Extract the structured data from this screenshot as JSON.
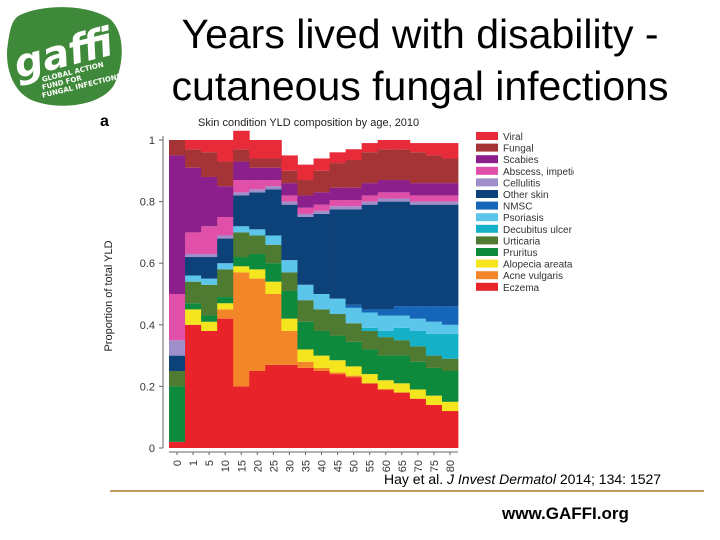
{
  "slide": {
    "title_line1": "Years lived with disability -",
    "title_line2": "cutaneous fungal infections",
    "citation_authors": "Hay et al.",
    "citation_journal": "J Invest Dermatol",
    "citation_details": "2014; 134: 1527",
    "website": "www.GAFFI.org"
  },
  "logo": {
    "wordmark": "gaffi",
    "tagline_1": "GLOBAL ACTION",
    "tagline_2": "FUND FOR",
    "tagline_3": "FUNGAL INFECTIONS",
    "bg_color": "#3f8a3a",
    "text_color": "#ffffff"
  },
  "chart_data": {
    "type": "stacked-bar",
    "panel_label": "a",
    "title": "Skin condition YLD composition by age, 2010",
    "ylabel": "Proportion of total YLD",
    "xlabel": "",
    "ylim": [
      0,
      1
    ],
    "yticks": [
      0,
      0.2,
      0.4,
      0.6,
      0.8,
      1
    ],
    "ytick_labels": [
      "0",
      "0.2",
      "0.4",
      "0.6",
      "0.8",
      "1"
    ],
    "categories": [
      "0",
      "1",
      "5",
      "10",
      "15",
      "20",
      "25",
      "30",
      "35",
      "40",
      "45",
      "50",
      "55",
      "60",
      "65",
      "70",
      "75",
      "80"
    ],
    "legend_position": "right",
    "series": [
      {
        "name": "Eczema",
        "color": "#e8232a",
        "values": [
          0.02,
          0.4,
          0.38,
          0.42,
          0.2,
          0.25,
          0.27,
          0.27,
          0.26,
          0.25,
          0.24,
          0.23,
          0.21,
          0.19,
          0.18,
          0.16,
          0.14,
          0.12
        ]
      },
      {
        "name": "Acne vulgaris",
        "color": "#f4862a",
        "values": [
          0,
          0,
          0,
          0.03,
          0.37,
          0.3,
          0.23,
          0.11,
          0.02,
          0.01,
          0.005,
          0.005,
          0,
          0,
          0,
          0,
          0,
          0
        ]
      },
      {
        "name": "Alopecia areata",
        "color": "#f4e51e",
        "values": [
          0,
          0.05,
          0.03,
          0.02,
          0.02,
          0.03,
          0.04,
          0.04,
          0.04,
          0.04,
          0.04,
          0.03,
          0.03,
          0.03,
          0.03,
          0.03,
          0.03,
          0.03
        ]
      },
      {
        "name": "Pruritus",
        "color": "#0d8a3c",
        "values": [
          0.18,
          0.02,
          0.02,
          0.02,
          0.03,
          0.05,
          0.06,
          0.09,
          0.09,
          0.08,
          0.08,
          0.08,
          0.08,
          0.08,
          0.09,
          0.09,
          0.09,
          0.1
        ]
      },
      {
        "name": "Urticaria",
        "color": "#4e7a32",
        "values": [
          0.05,
          0.07,
          0.1,
          0.09,
          0.08,
          0.06,
          0.06,
          0.06,
          0.07,
          0.07,
          0.07,
          0.06,
          0.06,
          0.06,
          0.05,
          0.05,
          0.04,
          0.04
        ]
      },
      {
        "name": "Decubitus ulcer",
        "color": "#14b0c8",
        "values": [
          0,
          0,
          0,
          0,
          0,
          0,
          0,
          0,
          0,
          0,
          0,
          0,
          0.01,
          0.02,
          0.04,
          0.05,
          0.07,
          0.08
        ]
      },
      {
        "name": "Psoriasis",
        "color": "#5cc6ea",
        "values": [
          0,
          0.02,
          0.02,
          0.02,
          0.02,
          0.02,
          0.03,
          0.04,
          0.05,
          0.05,
          0.05,
          0.05,
          0.05,
          0.05,
          0.04,
          0.04,
          0.04,
          0.03
        ]
      },
      {
        "name": "NMSC",
        "color": "#1565b8",
        "values": [
          0,
          0,
          0,
          0,
          0,
          0,
          0,
          0,
          0,
          0,
          0,
          0.01,
          0.01,
          0.02,
          0.03,
          0.04,
          0.05,
          0.06
        ]
      },
      {
        "name": "Other skin",
        "color": "#0d4179",
        "values": [
          0.05,
          0.06,
          0.07,
          0.08,
          0.1,
          0.12,
          0.15,
          0.18,
          0.22,
          0.26,
          0.29,
          0.31,
          0.34,
          0.35,
          0.34,
          0.33,
          0.33,
          0.33
        ]
      },
      {
        "name": "Cellulitis",
        "color": "#9e8ec9",
        "values": [
          0.05,
          0.01,
          0.01,
          0.01,
          0.01,
          0.01,
          0.01,
          0.01,
          0.01,
          0.01,
          0.01,
          0.01,
          0.01,
          0.01,
          0.01,
          0.01,
          0.01,
          0.01
        ]
      },
      {
        "name": "Abscess, impetigo, bacterial",
        "color": "#e04fa8",
        "values": [
          0.15,
          0.07,
          0.09,
          0.06,
          0.04,
          0.03,
          0.02,
          0.02,
          0.02,
          0.02,
          0.02,
          0.02,
          0.02,
          0.02,
          0.02,
          0.02,
          0.02,
          0.02
        ]
      },
      {
        "name": "Scabies",
        "color": "#8b1f8c",
        "values": [
          0.45,
          0.21,
          0.16,
          0.1,
          0.06,
          0.04,
          0.04,
          0.04,
          0.04,
          0.04,
          0.04,
          0.04,
          0.04,
          0.04,
          0.04,
          0.04,
          0.04,
          0.04
        ]
      },
      {
        "name": "Fungal",
        "color": "#a53437",
        "values": [
          0.05,
          0.06,
          0.08,
          0.08,
          0.04,
          0.03,
          0.03,
          0.04,
          0.05,
          0.07,
          0.08,
          0.09,
          0.1,
          0.1,
          0.1,
          0.1,
          0.09,
          0.08
        ]
      },
      {
        "name": "Viral",
        "color": "#e82b39",
        "values": [
          0,
          0.03,
          0.04,
          0.07,
          0.06,
          0.06,
          0.06,
          0.05,
          0.05,
          0.04,
          0.035,
          0.035,
          0.03,
          0.03,
          0.03,
          0.03,
          0.04,
          0.05
        ]
      }
    ]
  }
}
